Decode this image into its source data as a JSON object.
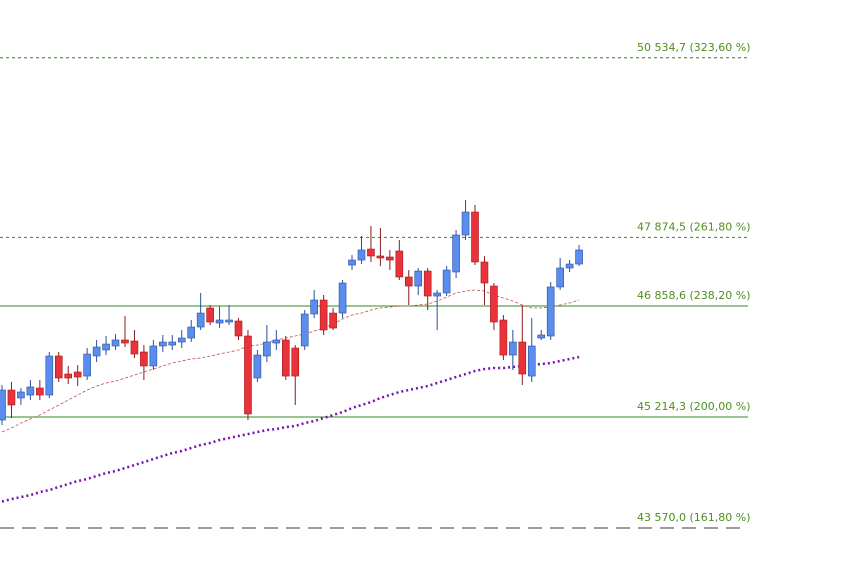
{
  "chart_data": {
    "type": "candlestick",
    "ylim": [
      43082,
      51390
    ],
    "up_color": "#5b8def",
    "down_color": "#e8333a",
    "open": [
      45170,
      45614,
      45496,
      45540,
      45644,
      45540,
      46118,
      45851,
      45881,
      45821,
      46118,
      46207,
      46266,
      46355,
      46340,
      46177,
      45970,
      46266,
      46280,
      46325,
      46384,
      46547,
      46829,
      46606,
      46621,
      46636,
      46414,
      45792,
      46118,
      46310,
      46355,
      46236,
      46266,
      46740,
      46947,
      46754,
      46754,
      47465,
      47539,
      47702,
      47599,
      47584,
      47673,
      47288,
      47154,
      47376,
      47006,
      47051,
      47362,
      47910,
      48250,
      47510,
      47154,
      46651,
      46132,
      46325,
      45821,
      46384,
      46414,
      47140,
      47421,
      47480
    ],
    "high": [
      45688,
      45733,
      45644,
      45762,
      45762,
      46177,
      46177,
      45970,
      45984,
      46236,
      46355,
      46414,
      46443,
      46710,
      46503,
      46280,
      46355,
      46429,
      46429,
      46503,
      46651,
      47051,
      46873,
      46858,
      46873,
      46680,
      46503,
      46207,
      46577,
      46503,
      46414,
      46280,
      46799,
      47095,
      47021,
      46829,
      47243,
      47613,
      47895,
      48043,
      48013,
      47688,
      47836,
      47391,
      47421,
      47421,
      47095,
      47450,
      47984,
      48428,
      48354,
      47599,
      47199,
      46725,
      46503,
      46873,
      46680,
      46503,
      47214,
      47569,
      47539,
      47762
    ],
    "low": [
      45096,
      45199,
      45392,
      45466,
      45466,
      45496,
      45733,
      45703,
      45673,
      45762,
      46029,
      46132,
      46207,
      46251,
      46088,
      45762,
      45910,
      46177,
      46207,
      46236,
      46325,
      46503,
      46577,
      46532,
      46577,
      46355,
      45170,
      45733,
      46029,
      46207,
      45762,
      45392,
      46207,
      46680,
      46429,
      46503,
      46680,
      47391,
      47480,
      47510,
      47450,
      47391,
      47243,
      46873,
      47021,
      46799,
      46503,
      47006,
      47273,
      47836,
      47465,
      46873,
      46503,
      46058,
      45910,
      45688,
      45733,
      46355,
      46355,
      47095,
      47362,
      47450
    ],
    "close": [
      45614,
      45392,
      45585,
      45659,
      45540,
      46118,
      45792,
      45792,
      45807,
      46147,
      46251,
      46295,
      46355,
      46310,
      46147,
      45970,
      46266,
      46325,
      46325,
      46384,
      46547,
      46754,
      46621,
      46651,
      46651,
      46414,
      45259,
      46132,
      46325,
      46355,
      45821,
      45821,
      46740,
      46947,
      46503,
      46532,
      47199,
      47539,
      47688,
      47599,
      47569,
      47539,
      47288,
      47154,
      47376,
      47006,
      47051,
      47391,
      47910,
      48250,
      47510,
      47199,
      46621,
      46132,
      46325,
      45851,
      46266,
      46429,
      47140,
      47421,
      47480,
      47688
    ],
    "overlays": [
      {
        "color": "#c0504d",
        "style": "thin-dash",
        "values": [
          44992,
          45051,
          45125,
          45185,
          45244,
          45318,
          45392,
          45466,
          45540,
          45614,
          45673,
          45718,
          45747,
          45792,
          45836,
          45881,
          45925,
          45970,
          46014,
          46044,
          46073,
          46088,
          46118,
          46147,
          46177,
          46207,
          46266,
          46280,
          46310,
          46355,
          46384,
          46414,
          46443,
          46488,
          46532,
          46592,
          46666,
          46725,
          46754,
          46799,
          46829,
          46843,
          46858,
          46858,
          46873,
          46888,
          46932,
          46991,
          47051,
          47080,
          47095,
          47080,
          47021,
          46977,
          46932,
          46873,
          46829,
          46829,
          46843,
          46873,
          46903,
          46947
        ]
      },
      {
        "color": "#7a0fb3",
        "style": "thick-dot",
        "values": [
          43963,
          44000,
          44029,
          44059,
          44103,
          44133,
          44178,
          44222,
          44266,
          44296,
          44340,
          44385,
          44414,
          44459,
          44503,
          44548,
          44592,
          44637,
          44681,
          44711,
          44755,
          44800,
          44829,
          44874,
          44903,
          44933,
          44962,
          44992,
          45022,
          45036,
          45066,
          45081,
          45125,
          45155,
          45199,
          45244,
          45288,
          45347,
          45392,
          45436,
          45496,
          45540,
          45585,
          45614,
          45644,
          45673,
          45718,
          45762,
          45807,
          45851,
          45896,
          45925,
          45940,
          45940,
          45955,
          45970,
          45984,
          45999,
          46014,
          46044,
          46073,
          46103
        ]
      }
    ],
    "levels": [
      {
        "value": 50534.7,
        "label": "50 534,7 (323,60 %)",
        "style": "dash",
        "color": "#2f8a1f"
      },
      {
        "value": 47874.5,
        "label": "47 874,5 (261,80 %)",
        "style": "dash",
        "color": "#2f8a1f"
      },
      {
        "value": 46858.6,
        "label": "46 858,6 (238,20 %)",
        "style": "solid",
        "color": "#2f8a1f"
      },
      {
        "value": 45214.3,
        "label": "45 214,3 (200,00 %)",
        "style": "solid",
        "color": "#2f8a1f"
      },
      {
        "value": 43570.0,
        "label": "43 570,0 (161,80 %)",
        "style": "long-dash",
        "color": "#3a3a3a"
      }
    ]
  }
}
